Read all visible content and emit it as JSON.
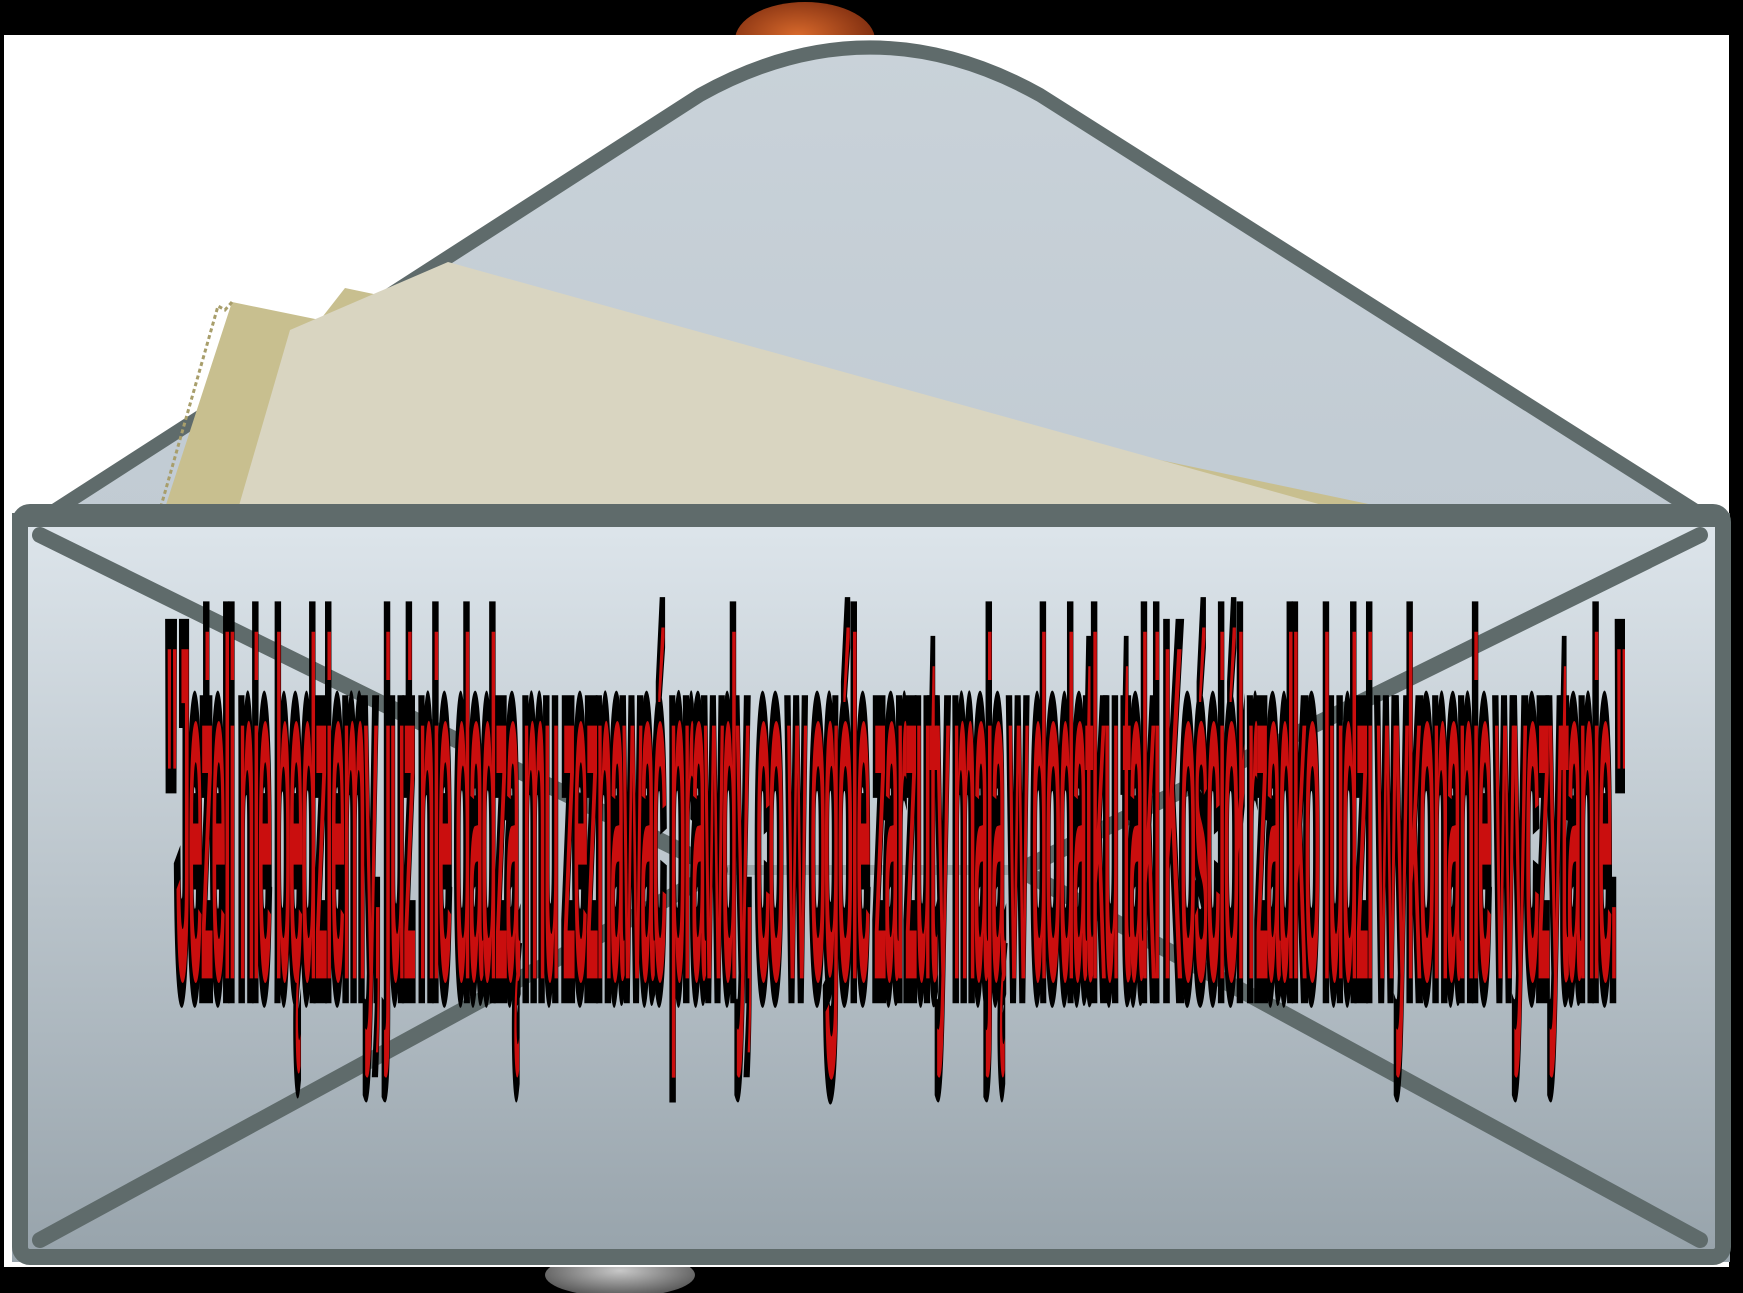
{
  "caption": {
    "text": "\"Jeżeli nie będziemy, już nie dadzą mu zeznawać prawdy, co w ogóle zarzuty mają w dodatku taki Kościół rzadko ludzi wykonanie wyczytanie.\""
  },
  "colors": {
    "background": "#000000",
    "page": "#ffffff",
    "envelope_outline": "#5f6b6b",
    "envelope_flap": "#c4ced6",
    "envelope_body_top": "#d8e1e7",
    "envelope_body_bottom": "#9aa5ad",
    "letter_front": "#d9d5c1",
    "letter_back": "#c8bf8f",
    "text_fill": "#000000",
    "text_accent": "#e01010",
    "planet": "#b5461c"
  },
  "icons": {
    "envelope": "open-envelope-with-letter-icon",
    "planet_top": "planet-icon",
    "planet_bottom": "planet-icon"
  }
}
